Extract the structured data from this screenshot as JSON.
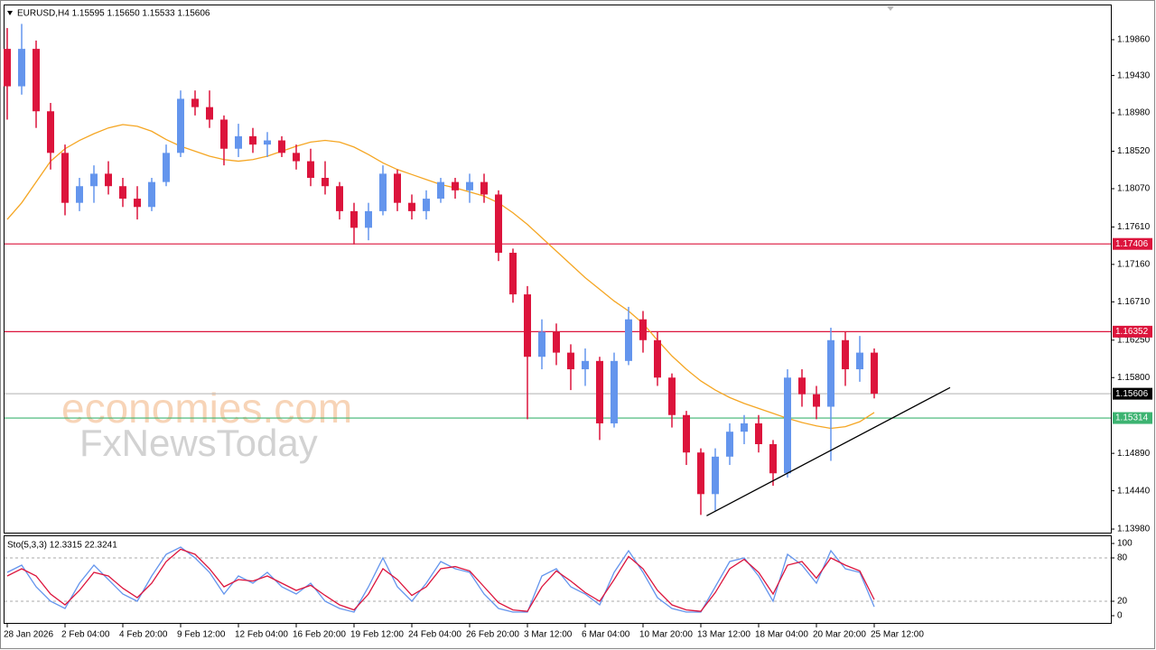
{
  "chart_data": {
    "type": "candlestick",
    "title": "EURUSD,H4  1.15595 1.15650 1.15533 1.15606",
    "watermark": [
      "economies.com",
      "FxNewsToday"
    ],
    "categories": [
      "28 Jan 2026",
      null,
      null,
      null,
      "2 Feb 04:00",
      null,
      null,
      null,
      "4 Feb 20:00",
      null,
      null,
      null,
      "9 Feb 12:00",
      null,
      null,
      null,
      "12 Feb 04:00",
      null,
      null,
      null,
      "16 Feb 20:00",
      null,
      null,
      null,
      "19 Feb 12:00",
      null,
      null,
      null,
      "24 Feb 04:00",
      null,
      null,
      null,
      "26 Feb 20:00",
      null,
      null,
      null,
      "3 Mar 12:00",
      null,
      null,
      null,
      "6 Mar 04:00",
      null,
      null,
      null,
      "10 Mar 20:00",
      null,
      null,
      null,
      "13 Mar 12:00",
      null,
      null,
      null,
      "18 Mar 04:00",
      null,
      null,
      null,
      "20 Mar 20:00",
      null,
      null,
      null,
      "25 Mar 12:00"
    ],
    "open": [
      1.1975,
      1.193,
      1.1975,
      1.19,
      1.185,
      1.179,
      1.181,
      1.1825,
      1.181,
      1.1795,
      1.1785,
      1.1815,
      1.185,
      1.1915,
      1.1905,
      1.189,
      1.1855,
      1.187,
      1.186,
      1.1865,
      1.185,
      1.184,
      1.182,
      1.181,
      1.178,
      1.176,
      1.178,
      1.1825,
      1.179,
      1.178,
      1.1795,
      1.1815,
      1.1805,
      1.1815,
      1.18,
      1.173,
      1.168,
      1.1605,
      1.1635,
      1.161,
      1.159,
      1.16,
      1.1525,
      1.16,
      1.165,
      1.1625,
      1.158,
      1.1535,
      1.149,
      1.144,
      1.1485,
      1.1515,
      1.1525,
      1.15,
      1.1465,
      1.158,
      1.156,
      1.1545,
      1.1625,
      1.159,
      1.161
    ],
    "high": [
      1.2,
      1.2005,
      1.1985,
      1.191,
      1.186,
      1.182,
      1.1835,
      1.184,
      1.182,
      1.181,
      1.182,
      1.186,
      1.1925,
      1.1925,
      1.1925,
      1.1895,
      1.1885,
      1.188,
      1.1875,
      1.187,
      1.186,
      1.1855,
      1.184,
      1.1815,
      1.179,
      1.179,
      1.1835,
      1.183,
      1.18,
      1.1805,
      1.182,
      1.182,
      1.1825,
      1.1825,
      1.1805,
      1.1735,
      1.169,
      1.165,
      1.1645,
      1.162,
      1.1615,
      1.1605,
      1.161,
      1.1665,
      1.166,
      1.1635,
      1.1585,
      1.154,
      1.1495,
      1.1495,
      1.1525,
      1.1535,
      1.1535,
      1.1505,
      1.159,
      1.159,
      1.157,
      1.164,
      1.1635,
      1.163,
      1.1615
    ],
    "low": [
      1.189,
      1.192,
      1.188,
      1.183,
      1.1775,
      1.178,
      1.179,
      1.18,
      1.1785,
      1.177,
      1.178,
      1.181,
      1.1845,
      1.1895,
      1.188,
      1.1835,
      1.1845,
      1.185,
      1.1845,
      1.1845,
      1.183,
      1.181,
      1.18,
      1.177,
      1.174,
      1.1745,
      1.1775,
      1.178,
      1.177,
      1.177,
      1.179,
      1.1795,
      1.179,
      1.179,
      1.172,
      1.167,
      1.153,
      1.159,
      1.1595,
      1.1565,
      1.157,
      1.1505,
      1.152,
      1.1595,
      1.161,
      1.157,
      1.152,
      1.1475,
      1.1415,
      1.142,
      1.1475,
      1.15,
      1.149,
      1.145,
      1.146,
      1.1545,
      1.153,
      1.148,
      1.157,
      1.1575,
      1.1555
    ],
    "close": [
      1.193,
      1.1975,
      1.19,
      1.185,
      1.179,
      1.181,
      1.1825,
      1.181,
      1.1795,
      1.1785,
      1.1815,
      1.185,
      1.1915,
      1.1905,
      1.189,
      1.1855,
      1.187,
      1.186,
      1.1865,
      1.185,
      1.184,
      1.182,
      1.181,
      1.178,
      1.176,
      1.178,
      1.1825,
      1.179,
      1.178,
      1.1795,
      1.1815,
      1.1805,
      1.1815,
      1.18,
      1.173,
      1.168,
      1.1605,
      1.1635,
      1.161,
      1.159,
      1.16,
      1.1525,
      1.16,
      1.165,
      1.1625,
      1.158,
      1.1535,
      1.149,
      1.144,
      1.1485,
      1.1515,
      1.1525,
      1.15,
      1.1465,
      1.158,
      1.156,
      1.1545,
      1.1625,
      1.159,
      1.161,
      1.15606
    ],
    "up_color": "#6495ed",
    "down_color": "#dc143c",
    "ma": {
      "color": "#f5a623",
      "values": [
        1.177,
        1.179,
        1.1815,
        1.184,
        1.1855,
        1.1865,
        1.1873,
        1.188,
        1.1884,
        1.1882,
        1.1876,
        1.1866,
        1.1858,
        1.1852,
        1.1846,
        1.1842,
        1.184,
        1.1842,
        1.1846,
        1.1852,
        1.1858,
        1.1863,
        1.1865,
        1.1863,
        1.1857,
        1.1848,
        1.1838,
        1.183,
        1.1824,
        1.1818,
        1.1812,
        1.1808,
        1.1803,
        1.1798,
        1.179,
        1.1778,
        1.1764,
        1.1748,
        1.1732,
        1.1716,
        1.17,
        1.1686,
        1.1672,
        1.166,
        1.1645,
        1.1625,
        1.1606,
        1.159,
        1.1576,
        1.1565,
        1.1556,
        1.1549,
        1.1543,
        1.1537,
        1.1531,
        1.1526,
        1.1522,
        1.1519,
        1.1521,
        1.1527,
        1.1538
      ]
    },
    "trendline": {
      "color": "#000000",
      "x": [
        48.4,
        65.25
      ],
      "y": [
        1.1414,
        1.1568
      ]
    },
    "ylim": [
      1.13937,
      1.20272
    ],
    "yticks": [
      {
        "value": 1.1986,
        "label": "1.19860"
      },
      {
        "value": 1.1943,
        "label": "1.19430"
      },
      {
        "value": 1.1898,
        "label": "1.18980"
      },
      {
        "value": 1.1852,
        "label": "1.18520"
      },
      {
        "value": 1.1807,
        "label": "1.18070"
      },
      {
        "value": 1.1761,
        "label": "1.17610"
      },
      {
        "value": 1.1716,
        "label": "1.17160"
      },
      {
        "value": 1.1671,
        "label": "1.16710"
      },
      {
        "value": 1.1625,
        "label": "1.16250"
      },
      {
        "value": 1.158,
        "label": "1.15800"
      },
      {
        "value": 1.1489,
        "label": "1.14890"
      },
      {
        "value": 1.1444,
        "label": "1.14440"
      },
      {
        "value": 1.1398,
        "label": "1.13980"
      }
    ],
    "levels": [
      {
        "value": 1.17406,
        "color": "#dc143c",
        "line_color": "#dc143c"
      },
      {
        "value": 1.16352,
        "color": "#dc143c",
        "line_color": "#dc143c"
      },
      {
        "value": 1.15606,
        "color": "#000000",
        "line_color": "#c0c0c0"
      },
      {
        "value": 1.15314,
        "color": "#3cb371",
        "line_color": "#3cb371"
      }
    ],
    "indicator": {
      "type": "line",
      "title": "Sto(5,3,3) 12.3315 22.3241",
      "ylim": [
        0,
        100
      ],
      "yticks": [
        100,
        80,
        20,
        0
      ],
      "levels": [
        80,
        20
      ],
      "series": [
        {
          "color": "#6495ed",
          "values": [
            60,
            70,
            40,
            20,
            10,
            45,
            70,
            50,
            30,
            20,
            55,
            85,
            95,
            80,
            60,
            30,
            55,
            45,
            60,
            40,
            30,
            45,
            20,
            10,
            5,
            40,
            80,
            40,
            20,
            45,
            75,
            65,
            60,
            30,
            10,
            5,
            5,
            55,
            65,
            40,
            30,
            15,
            60,
            90,
            60,
            25,
            10,
            5,
            5,
            40,
            75,
            80,
            55,
            20,
            85,
            70,
            45,
            90,
            65,
            60,
            12.3315
          ]
        },
        {
          "color": "#dc143c",
          "values": [
            55,
            65,
            55,
            30,
            15,
            35,
            60,
            55,
            38,
            25,
            45,
            75,
            92,
            85,
            65,
            40,
            50,
            48,
            55,
            45,
            35,
            42,
            28,
            15,
            8,
            30,
            65,
            50,
            28,
            40,
            65,
            68,
            62,
            40,
            18,
            8,
            6,
            40,
            62,
            48,
            32,
            20,
            50,
            82,
            65,
            35,
            15,
            8,
            6,
            32,
            65,
            78,
            60,
            30,
            70,
            75,
            52,
            80,
            70,
            62,
            22.3241
          ]
        }
      ]
    }
  }
}
